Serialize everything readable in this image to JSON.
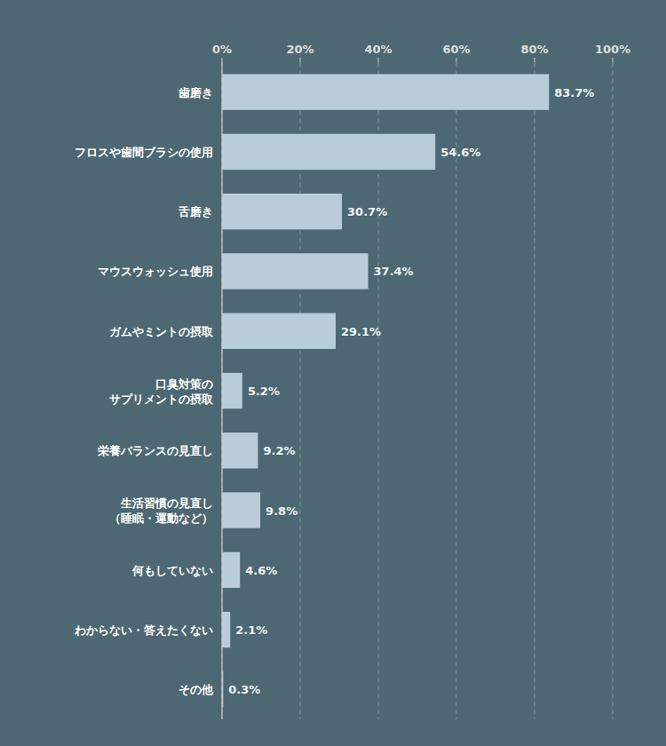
{
  "chart_data": {
    "type": "bar",
    "orientation": "horizontal",
    "categories": [
      "歯磨き",
      "フロスや歯間ブラシの使用",
      "舌磨き",
      "マウスウォッシュ使用",
      "ガムやミントの摂取",
      "口臭対策の\nサプリメントの摂取",
      "栄養バランスの見直し",
      "生活習慣の見直し\n（睡眠・運動など）",
      "何もしていない",
      "わからない・答えたくない",
      "その他"
    ],
    "values": [
      83.7,
      54.6,
      30.7,
      37.4,
      29.1,
      5.2,
      9.2,
      9.8,
      4.6,
      2.1,
      0.3
    ],
    "value_labels": [
      "83.7%",
      "54.6%",
      "30.7%",
      "37.4%",
      "29.1%",
      "5.2%",
      "9.2%",
      "9.8%",
      "4.6%",
      "2.1%",
      "0.3%"
    ],
    "data_labels": true,
    "color": "#b8cdd8",
    "xlim": [
      0,
      100
    ],
    "xticks": [
      {
        "value": 0,
        "label": "0%"
      },
      {
        "value": 20,
        "label": "20%"
      },
      {
        "value": 40,
        "label": "40%"
      },
      {
        "value": 60,
        "label": "60%"
      },
      {
        "value": 80,
        "label": "80%"
      },
      {
        "value": 100,
        "label": "100%"
      }
    ],
    "grid": true
  }
}
